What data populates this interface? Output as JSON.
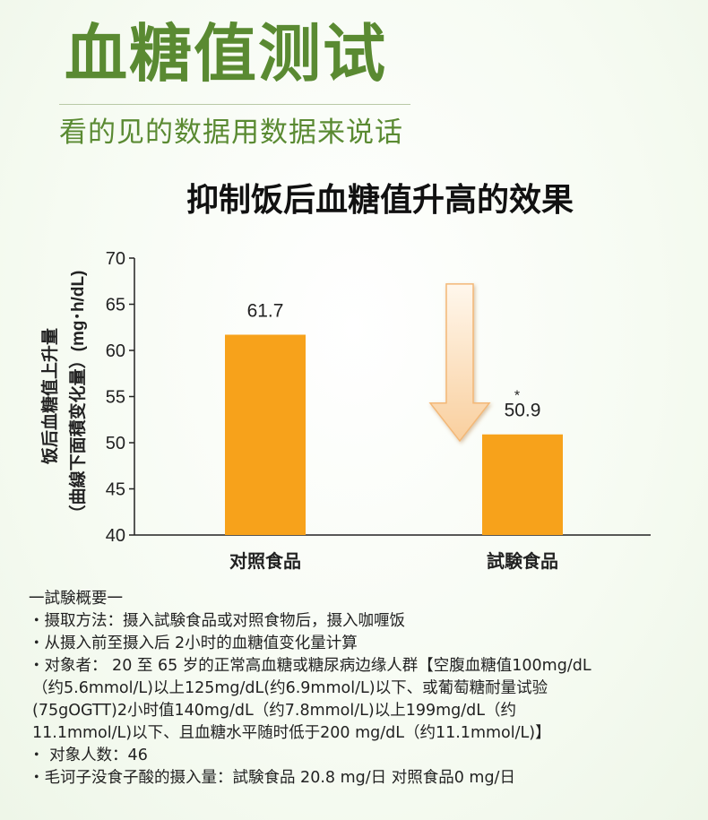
{
  "header": {
    "title": "血糖值测试",
    "subtitle": "看的见的数据用数据来说话"
  },
  "chart_data": {
    "type": "bar",
    "title": "抑制饭后血糖值升高的效果",
    "ylabel_line1": "饭后血糖值上升量",
    "ylabel_line2": "（曲線下面積变化量）(mg･h/dL)",
    "categories": [
      "对照食品",
      "試験食品"
    ],
    "values": [
      61.7,
      50.9
    ],
    "value_labels": [
      "61.7",
      "50.9"
    ],
    "ylim": [
      40,
      70
    ],
    "yticks": [
      40,
      45,
      50,
      55,
      60,
      65,
      70
    ],
    "grid": false,
    "bar_color": "#f7a21b",
    "arrow_color": "#fbd9b0",
    "marker": "*"
  },
  "notes": {
    "heading": "一試験概要一",
    "lines": [
      "・摄取方法：摄入試験食品或对照食物后，摄入咖喱饭",
      "・从摄入前至摄入后 2小时的血糖值变化量计算",
      "・对象者： 20 至 65 岁的正常高血糖或糖尿病边缘人群【空腹血糖值100mg/dL",
      "（约5.6mmol/L)以上125mg/dL(约6.9mmol/L)以下、或葡萄糖耐量试验",
      "(75gOGTT)2小时值140mg/dL（约7.8mmol/L)以上199mg/dL（约",
      "11.1mmol/L)以下、且血糖水平随时低于200 mg/dL（约11.1mmol/L)】",
      "・ 对象人数：46",
      "・毛诃子没食子酸的摄入量：試験食品 20.8 mg/日  对照食品0 mg/日"
    ]
  }
}
